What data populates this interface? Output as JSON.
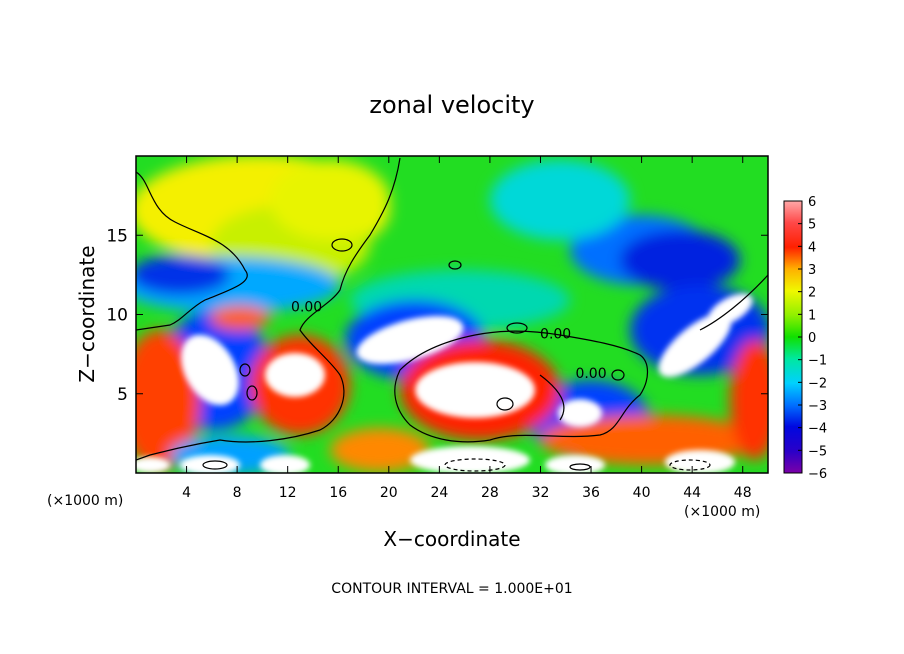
{
  "chart_data": {
    "type": "heatmap",
    "title": "zonal velocity",
    "xlabel": "X−coordinate",
    "ylabel": "Z−coordinate",
    "x_unit_label": "(×1000 m)",
    "x_unit_label_right": "(×1000 m)",
    "xlim": [
      0,
      50
    ],
    "ylim": [
      0,
      20
    ],
    "xticks": [
      4,
      8,
      12,
      16,
      20,
      24,
      28,
      32,
      36,
      40,
      44,
      48
    ],
    "yticks": [
      5,
      10,
      15
    ],
    "xticklabels": [
      "4",
      "8",
      "12",
      "16",
      "20",
      "24",
      "28",
      "32",
      "36",
      "40",
      "44",
      "48"
    ],
    "yticklabels": [
      "5",
      "10",
      "15"
    ],
    "colorbar": {
      "min": -6,
      "max": 6,
      "ticks": [
        6,
        5,
        4,
        3,
        2,
        1,
        0,
        -1,
        -2,
        -3,
        -4,
        -5,
        -6
      ],
      "ticklabels": [
        "6",
        "5",
        "4",
        "3",
        "2",
        "1",
        "0",
        "−1",
        "−2",
        "−3",
        "−4",
        "−5",
        "−6"
      ],
      "colors": [
        "#7b00a8",
        "#3c00c8",
        "#0008e0",
        "#0058ff",
        "#00a8ff",
        "#00e8e8",
        "#00e070",
        "#30e000",
        "#a8f000",
        "#f8f800",
        "#ffb000",
        "#ff5a00",
        "#ff0000",
        "#ff4848",
        "#ff9898"
      ]
    },
    "contour_labels": [
      {
        "text": "0.00",
        "x": 13.5,
        "z": 10.2
      },
      {
        "text": "0.00",
        "x": 33.2,
        "z": 8.5
      },
      {
        "text": "0.00",
        "x": 36.0,
        "z": 6.0
      }
    ],
    "footer": "CONTOUR INTERVAL = 1.000E+01"
  }
}
